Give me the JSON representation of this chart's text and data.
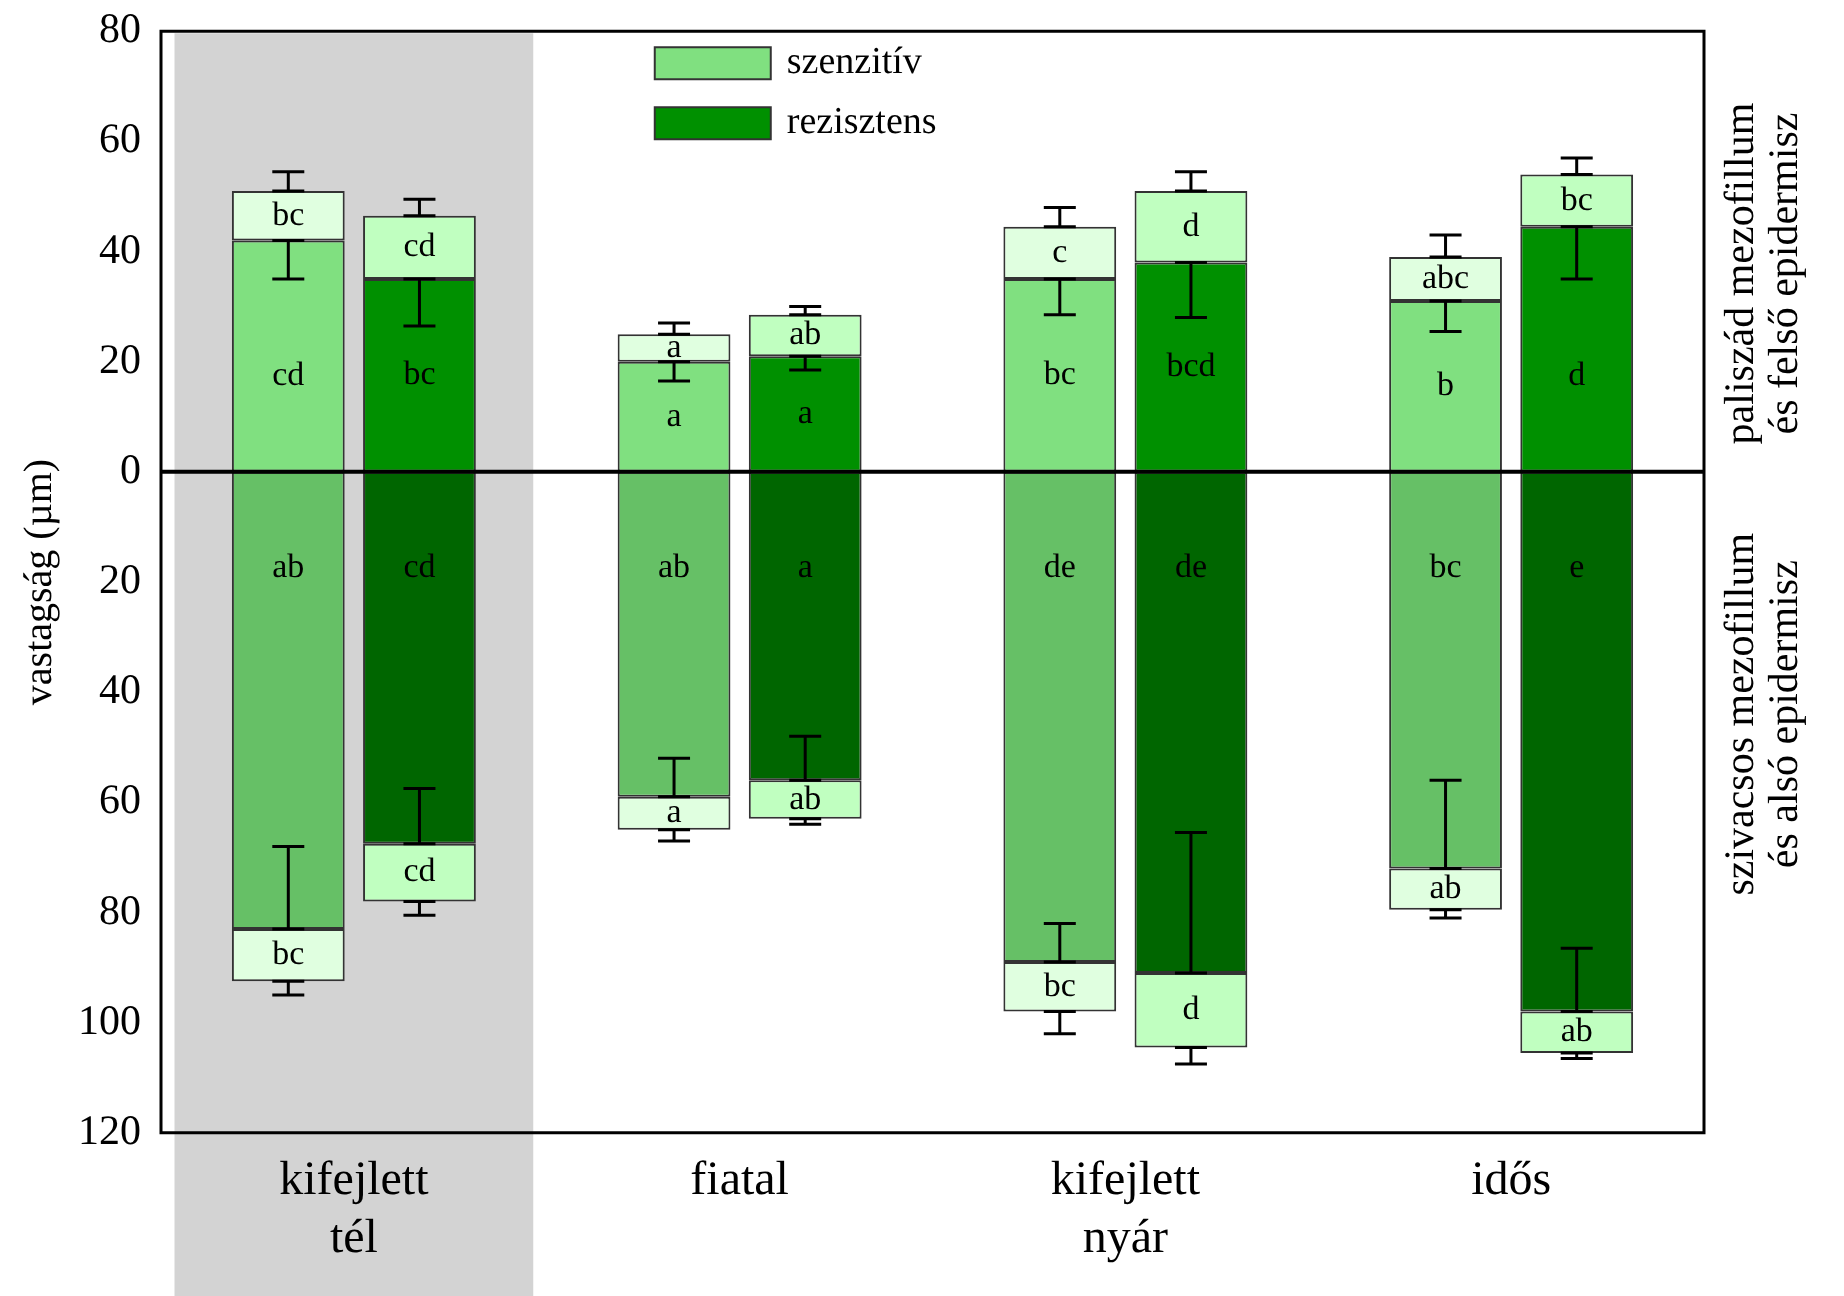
{
  "chart_data": {
    "type": "bar",
    "ylabel": "vastagság (µm)",
    "categories": [
      "kifejlett tél",
      "fiatal",
      "kifejlett nyár",
      "idős"
    ],
    "series": [
      {
        "name": "szenzitív",
        "color": "#80e080",
        "base": [
          0,
          0,
          0,
          0
        ],
        "values": [
          42,
          20,
          35,
          31
        ],
        "errors": [
          [
            35,
            42
          ],
          [
            16.5,
            20
          ],
          [
            28.5,
            35
          ],
          [
            25.5,
            31
          ]
        ],
        "value_labels": [
          "cd",
          "a",
          "bc",
          "b"
        ]
      },
      {
        "color": "#e0ffe0",
        "base": [
          42,
          20,
          35,
          31
        ],
        "values": [
          9,
          5,
          9.5,
          8
        ],
        "errors": [
          [
            51,
            54.5
          ],
          [
            25,
            27
          ],
          [
            44.5,
            48
          ],
          [
            39,
            43
          ]
        ],
        "value_labels": [
          "bc",
          "a",
          "c",
          "abc"
        ]
      },
      {
        "color": "#66c066",
        "base": [
          0,
          0,
          0,
          0
        ],
        "values": [
          -83,
          -59,
          -89,
          -72
        ],
        "errors": [
          [
            -83,
            -68
          ],
          [
            -59,
            -52
          ],
          [
            -89,
            -82
          ],
          [
            -72,
            -56
          ]
        ],
        "value_labels": [
          "ab",
          "ab",
          "de",
          "bc"
        ]
      },
      {
        "color": "#e0ffe0",
        "base": [
          -83,
          -59,
          -89,
          -72
        ],
        "values": [
          -9.5,
          -6,
          -9,
          -7.5
        ],
        "errors": [
          [
            -95,
            -92.5
          ],
          [
            -67,
            -65
          ],
          [
            -102,
            -98
          ],
          [
            -81,
            -79.5
          ]
        ],
        "value_labels": [
          "bc",
          "a",
          "bc",
          "ab"
        ]
      },
      {
        "name": "rezisztens",
        "color": "#009000",
        "base": [
          0,
          0,
          0,
          0
        ],
        "values": [
          35,
          21,
          38,
          44.5
        ],
        "errors": [
          [
            26.5,
            35
          ],
          [
            18.5,
            21
          ],
          [
            28,
            38
          ],
          [
            35,
            44.5
          ]
        ],
        "value_labels": [
          "bc",
          "a",
          "bcd",
          "d"
        ]
      },
      {
        "color": "#c0ffc0",
        "base": [
          35,
          21,
          38,
          44.5
        ],
        "values": [
          11.5,
          7.5,
          13,
          9.5
        ],
        "errors": [
          [
            46.5,
            49.5
          ],
          [
            28.5,
            30
          ],
          [
            51,
            54.5
          ],
          [
            54,
            57
          ]
        ],
        "value_labels": [
          "cd",
          "ab",
          "d",
          "bc"
        ]
      },
      {
        "color": "#006600",
        "base": [
          0,
          0,
          0,
          0
        ],
        "values": [
          -67.5,
          -56,
          -91,
          -98
        ],
        "errors": [
          [
            -67.5,
            -57.5
          ],
          [
            -56,
            -48
          ],
          [
            -91,
            -65.5
          ],
          [
            -98,
            -86.5
          ]
        ],
        "value_labels": [
          "cd",
          "a",
          "de",
          "e"
        ]
      },
      {
        "color": "#c0ffc0",
        "base": [
          -67.5,
          -56,
          -91,
          -98
        ],
        "values": [
          -10.5,
          -7,
          -13.5,
          -7.5
        ],
        "errors": [
          [
            -80.5,
            -78
          ],
          [
            -64,
            -63
          ],
          [
            -107.5,
            -104.5
          ],
          [
            -106.5,
            -105.5
          ]
        ],
        "value_labels": [
          "cd",
          "ab",
          "d",
          "ab"
        ]
      }
    ],
    "ylim": [
      -120,
      80
    ],
    "yticks": [
      {
        "value": -120,
        "label": "120"
      },
      {
        "value": -100,
        "label": "100"
      },
      {
        "value": -80,
        "label": "80"
      },
      {
        "value": -60,
        "label": "60"
      },
      {
        "value": -40,
        "label": "40"
      },
      {
        "value": -20,
        "label": "20"
      },
      0,
      20,
      40,
      60,
      80
    ],
    "ref_lines": [
      {
        "axis": "y",
        "value": 0,
        "color": "#000000"
      }
    ],
    "bands": [
      {
        "axis": "x",
        "from": "kifejlett tél",
        "to": "kifejlett tél",
        "color": "#d3d3d3"
      }
    ],
    "annotations": [
      "paliszád mezofillum\nés felső epidermisz",
      "szivacsos mezofillum\nés alsó epidermisz"
    ],
    "legend": "top",
    "grid": false
  }
}
